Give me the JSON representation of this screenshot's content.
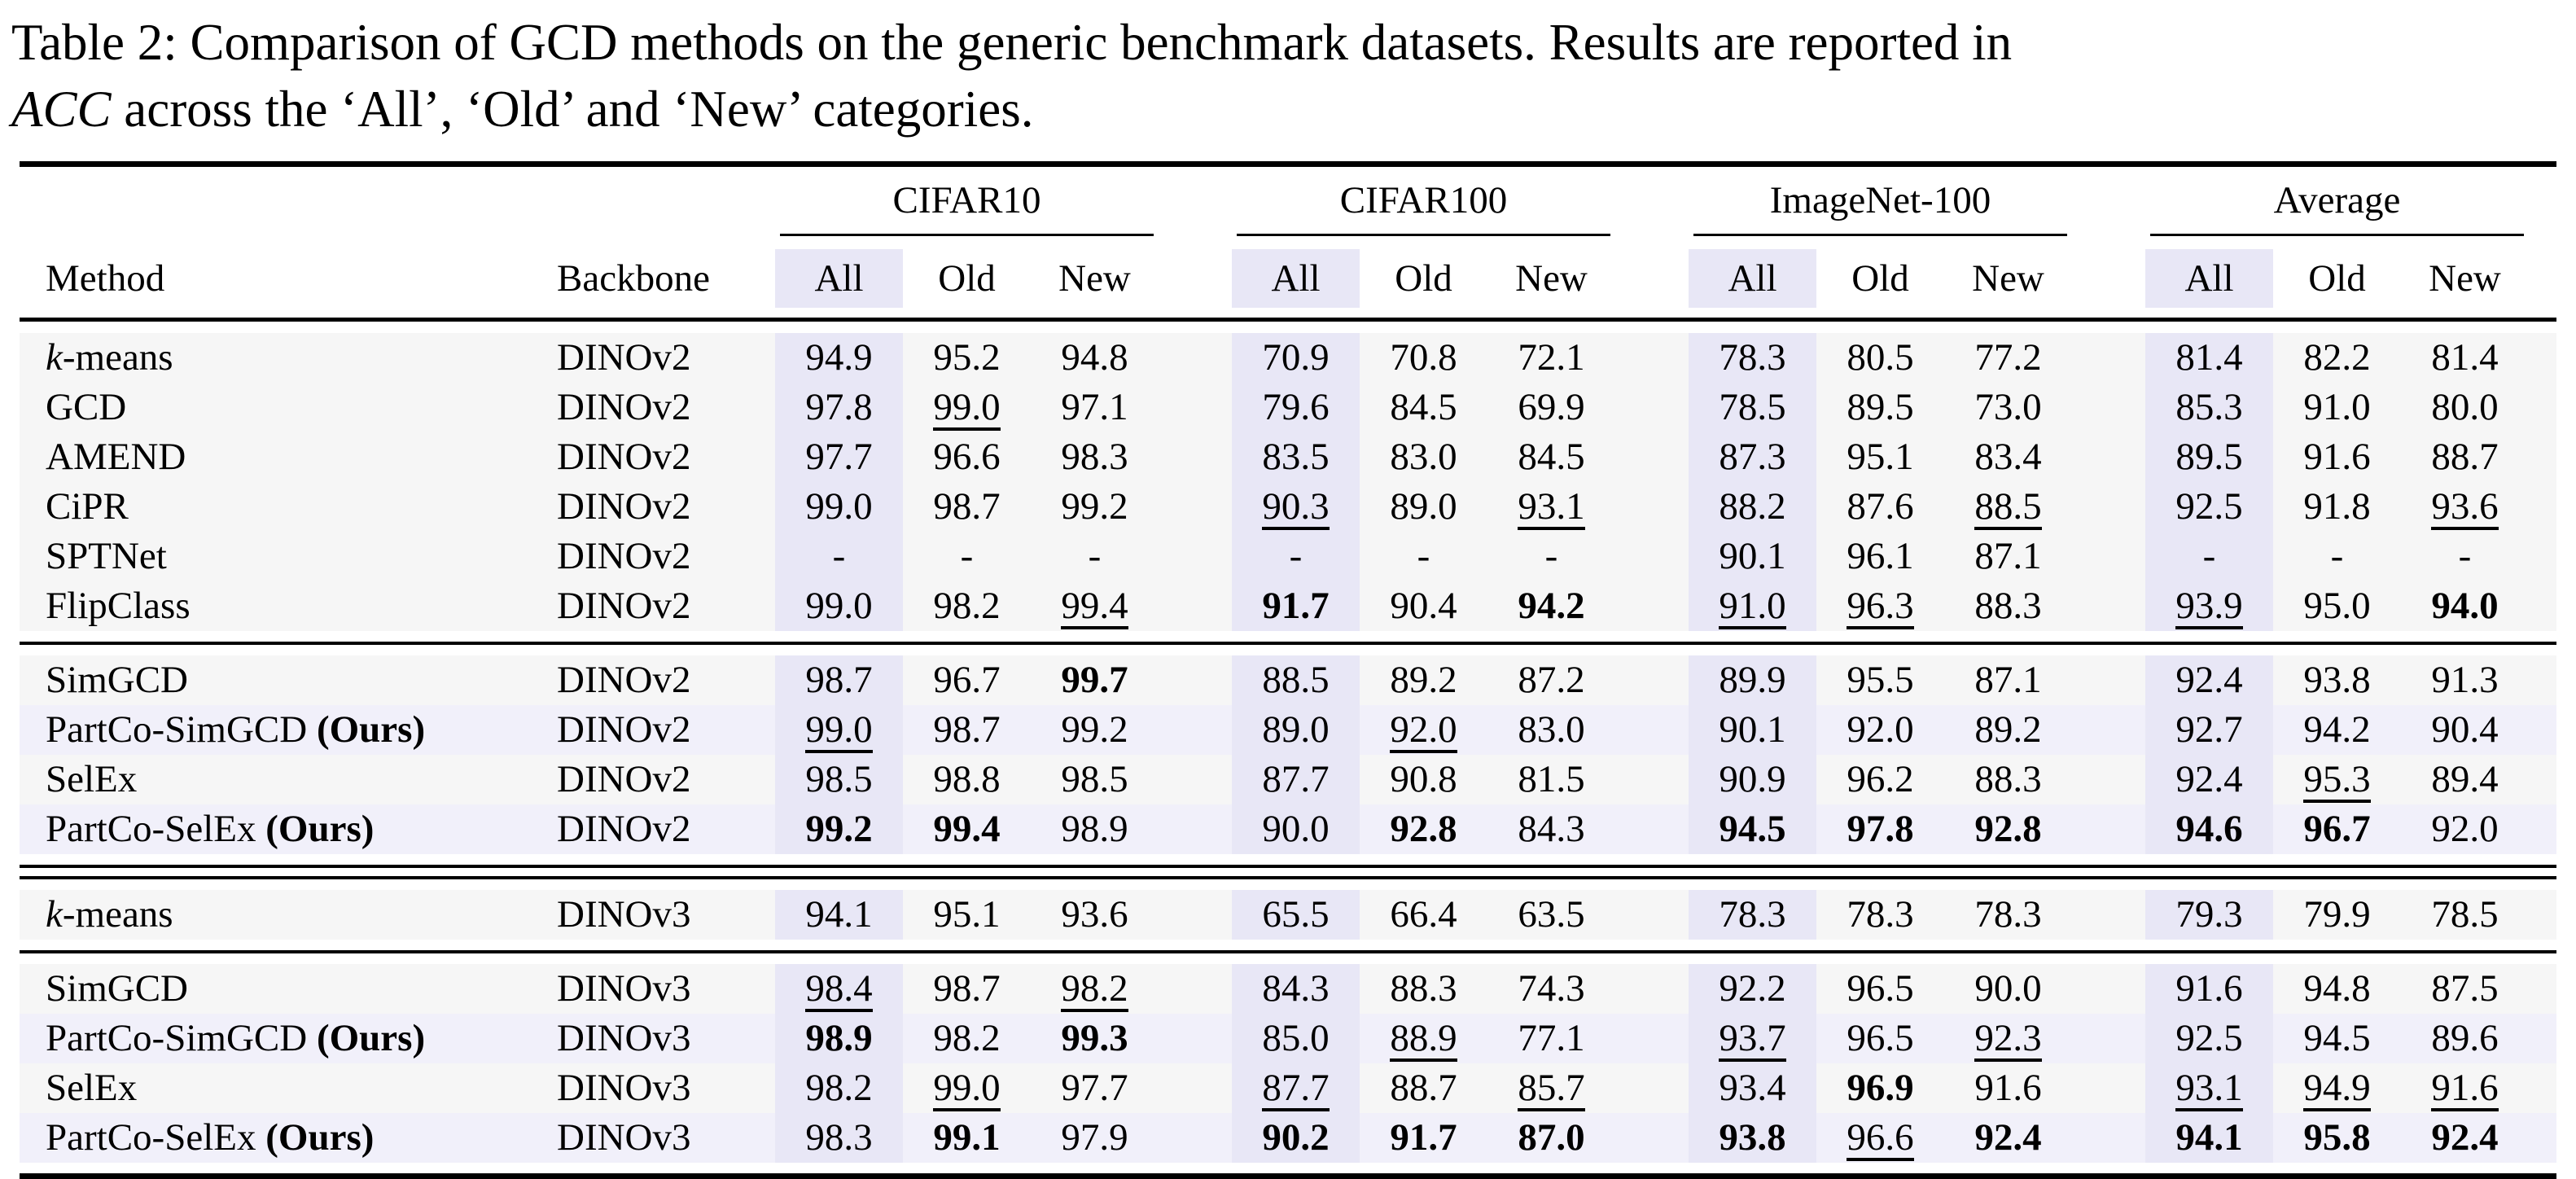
{
  "caption": {
    "line1": "Table 2: Comparison of GCD methods on the generic benchmark datasets. Results are reported in",
    "acc_italic": "ACC",
    "line2_rest": " across the ‘All’, ‘Old’ and ‘New’ categories."
  },
  "table": {
    "header": {
      "method": "Method",
      "backbone": "Backbone",
      "groups": [
        "CIFAR10",
        "CIFAR100",
        "ImageNet-100",
        "Average"
      ],
      "subcolumns": [
        "All",
        "Old",
        "New"
      ]
    },
    "colors": {
      "all_column_highlight": "#e8e7f6",
      "row_default": "#f6f6f6",
      "row_ours": "#f1f0fa"
    },
    "style_legend": {
      "n": "normal",
      "u": "underline (second best)",
      "b": "bold (best)"
    },
    "sections": [
      {
        "rows": [
          {
            "method": {
              "italic": "k",
              "text": "-means",
              "bold": ""
            },
            "backbone": "DINOv2",
            "ours": false,
            "values": [
              [
                "94.9",
                "n"
              ],
              [
                "95.2",
                "n"
              ],
              [
                "94.8",
                "n"
              ],
              [
                "70.9",
                "n"
              ],
              [
                "70.8",
                "n"
              ],
              [
                "72.1",
                "n"
              ],
              [
                "78.3",
                "n"
              ],
              [
                "80.5",
                "n"
              ],
              [
                "77.2",
                "n"
              ],
              [
                "81.4",
                "n"
              ],
              [
                "82.2",
                "n"
              ],
              [
                "81.4",
                "n"
              ]
            ]
          },
          {
            "method": {
              "italic": "",
              "text": "GCD",
              "bold": ""
            },
            "backbone": "DINOv2",
            "ours": false,
            "values": [
              [
                "97.8",
                "n"
              ],
              [
                "99.0",
                "u"
              ],
              [
                "97.1",
                "n"
              ],
              [
                "79.6",
                "n"
              ],
              [
                "84.5",
                "n"
              ],
              [
                "69.9",
                "n"
              ],
              [
                "78.5",
                "n"
              ],
              [
                "89.5",
                "n"
              ],
              [
                "73.0",
                "n"
              ],
              [
                "85.3",
                "n"
              ],
              [
                "91.0",
                "n"
              ],
              [
                "80.0",
                "n"
              ]
            ]
          },
          {
            "method": {
              "italic": "",
              "text": "AMEND",
              "bold": ""
            },
            "backbone": "DINOv2",
            "ours": false,
            "values": [
              [
                "97.7",
                "n"
              ],
              [
                "96.6",
                "n"
              ],
              [
                "98.3",
                "n"
              ],
              [
                "83.5",
                "n"
              ],
              [
                "83.0",
                "n"
              ],
              [
                "84.5",
                "n"
              ],
              [
                "87.3",
                "n"
              ],
              [
                "95.1",
                "n"
              ],
              [
                "83.4",
                "n"
              ],
              [
                "89.5",
                "n"
              ],
              [
                "91.6",
                "n"
              ],
              [
                "88.7",
                "n"
              ]
            ]
          },
          {
            "method": {
              "italic": "",
              "text": "CiPR",
              "bold": ""
            },
            "backbone": "DINOv2",
            "ours": false,
            "values": [
              [
                "99.0",
                "n"
              ],
              [
                "98.7",
                "n"
              ],
              [
                "99.2",
                "n"
              ],
              [
                "90.3",
                "u"
              ],
              [
                "89.0",
                "n"
              ],
              [
                "93.1",
                "u"
              ],
              [
                "88.2",
                "n"
              ],
              [
                "87.6",
                "n"
              ],
              [
                "88.5",
                "u"
              ],
              [
                "92.5",
                "n"
              ],
              [
                "91.8",
                "n"
              ],
              [
                "93.6",
                "u"
              ]
            ]
          },
          {
            "method": {
              "italic": "",
              "text": "SPTNet",
              "bold": ""
            },
            "backbone": "DINOv2",
            "ours": false,
            "values": [
              [
                "-",
                "n"
              ],
              [
                "-",
                "n"
              ],
              [
                "-",
                "n"
              ],
              [
                "-",
                "n"
              ],
              [
                "-",
                "n"
              ],
              [
                "-",
                "n"
              ],
              [
                "90.1",
                "n"
              ],
              [
                "96.1",
                "n"
              ],
              [
                "87.1",
                "n"
              ],
              [
                "-",
                "n"
              ],
              [
                "-",
                "n"
              ],
              [
                "-",
                "n"
              ]
            ]
          },
          {
            "method": {
              "italic": "",
              "text": "FlipClass",
              "bold": ""
            },
            "backbone": "DINOv2",
            "ours": false,
            "values": [
              [
                "99.0",
                "n"
              ],
              [
                "98.2",
                "n"
              ],
              [
                "99.4",
                "u"
              ],
              [
                "91.7",
                "b"
              ],
              [
                "90.4",
                "n"
              ],
              [
                "94.2",
                "b"
              ],
              [
                "91.0",
                "u"
              ],
              [
                "96.3",
                "u"
              ],
              [
                "88.3",
                "n"
              ],
              [
                "93.9",
                "u"
              ],
              [
                "95.0",
                "n"
              ],
              [
                "94.0",
                "b"
              ]
            ]
          }
        ]
      },
      {
        "rows": [
          {
            "method": {
              "italic": "",
              "text": "SimGCD",
              "bold": ""
            },
            "backbone": "DINOv2",
            "ours": false,
            "values": [
              [
                "98.7",
                "n"
              ],
              [
                "96.7",
                "n"
              ],
              [
                "99.7",
                "b"
              ],
              [
                "88.5",
                "n"
              ],
              [
                "89.2",
                "n"
              ],
              [
                "87.2",
                "n"
              ],
              [
                "89.9",
                "n"
              ],
              [
                "95.5",
                "n"
              ],
              [
                "87.1",
                "n"
              ],
              [
                "92.4",
                "n"
              ],
              [
                "93.8",
                "n"
              ],
              [
                "91.3",
                "n"
              ]
            ]
          },
          {
            "method": {
              "italic": "",
              "text": "PartCo-SimGCD ",
              "bold": "(Ours)"
            },
            "backbone": "DINOv2",
            "ours": true,
            "values": [
              [
                "99.0",
                "u"
              ],
              [
                "98.7",
                "n"
              ],
              [
                "99.2",
                "n"
              ],
              [
                "89.0",
                "n"
              ],
              [
                "92.0",
                "u"
              ],
              [
                "83.0",
                "n"
              ],
              [
                "90.1",
                "n"
              ],
              [
                "92.0",
                "n"
              ],
              [
                "89.2",
                "n"
              ],
              [
                "92.7",
                "n"
              ],
              [
                "94.2",
                "n"
              ],
              [
                "90.4",
                "n"
              ]
            ]
          },
          {
            "method": {
              "italic": "",
              "text": "SelEx",
              "bold": ""
            },
            "backbone": "DINOv2",
            "ours": false,
            "values": [
              [
                "98.5",
                "n"
              ],
              [
                "98.8",
                "n"
              ],
              [
                "98.5",
                "n"
              ],
              [
                "87.7",
                "n"
              ],
              [
                "90.8",
                "n"
              ],
              [
                "81.5",
                "n"
              ],
              [
                "90.9",
                "n"
              ],
              [
                "96.2",
                "n"
              ],
              [
                "88.3",
                "n"
              ],
              [
                "92.4",
                "n"
              ],
              [
                "95.3",
                "u"
              ],
              [
                "89.4",
                "n"
              ]
            ]
          },
          {
            "method": {
              "italic": "",
              "text": "PartCo-SelEx ",
              "bold": "(Ours)"
            },
            "backbone": "DINOv2",
            "ours": true,
            "values": [
              [
                "99.2",
                "b"
              ],
              [
                "99.4",
                "b"
              ],
              [
                "98.9",
                "n"
              ],
              [
                "90.0",
                "n"
              ],
              [
                "92.8",
                "b"
              ],
              [
                "84.3",
                "n"
              ],
              [
                "94.5",
                "b"
              ],
              [
                "97.8",
                "b"
              ],
              [
                "92.8",
                "b"
              ],
              [
                "94.6",
                "b"
              ],
              [
                "96.7",
                "b"
              ],
              [
                "92.0",
                "n"
              ]
            ]
          }
        ]
      },
      {
        "rows": [
          {
            "method": {
              "italic": "k",
              "text": "-means",
              "bold": ""
            },
            "backbone": "DINOv3",
            "ours": false,
            "values": [
              [
                "94.1",
                "n"
              ],
              [
                "95.1",
                "n"
              ],
              [
                "93.6",
                "n"
              ],
              [
                "65.5",
                "n"
              ],
              [
                "66.4",
                "n"
              ],
              [
                "63.5",
                "n"
              ],
              [
                "78.3",
                "n"
              ],
              [
                "78.3",
                "n"
              ],
              [
                "78.3",
                "n"
              ],
              [
                "79.3",
                "n"
              ],
              [
                "79.9",
                "n"
              ],
              [
                "78.5",
                "n"
              ]
            ]
          }
        ]
      },
      {
        "rows": [
          {
            "method": {
              "italic": "",
              "text": "SimGCD",
              "bold": ""
            },
            "backbone": "DINOv3",
            "ours": false,
            "values": [
              [
                "98.4",
                "u"
              ],
              [
                "98.7",
                "n"
              ],
              [
                "98.2",
                "u"
              ],
              [
                "84.3",
                "n"
              ],
              [
                "88.3",
                "n"
              ],
              [
                "74.3",
                "n"
              ],
              [
                "92.2",
                "n"
              ],
              [
                "96.5",
                "n"
              ],
              [
                "90.0",
                "n"
              ],
              [
                "91.6",
                "n"
              ],
              [
                "94.8",
                "n"
              ],
              [
                "87.5",
                "n"
              ]
            ]
          },
          {
            "method": {
              "italic": "",
              "text": "PartCo-SimGCD ",
              "bold": "(Ours)"
            },
            "backbone": "DINOv3",
            "ours": true,
            "values": [
              [
                "98.9",
                "b"
              ],
              [
                "98.2",
                "n"
              ],
              [
                "99.3",
                "b"
              ],
              [
                "85.0",
                "n"
              ],
              [
                "88.9",
                "u"
              ],
              [
                "77.1",
                "n"
              ],
              [
                "93.7",
                "u"
              ],
              [
                "96.5",
                "n"
              ],
              [
                "92.3",
                "u"
              ],
              [
                "92.5",
                "n"
              ],
              [
                "94.5",
                "n"
              ],
              [
                "89.6",
                "n"
              ]
            ]
          },
          {
            "method": {
              "italic": "",
              "text": "SelEx",
              "bold": ""
            },
            "backbone": "DINOv3",
            "ours": false,
            "values": [
              [
                "98.2",
                "n"
              ],
              [
                "99.0",
                "u"
              ],
              [
                "97.7",
                "n"
              ],
              [
                "87.7",
                "u"
              ],
              [
                "88.7",
                "n"
              ],
              [
                "85.7",
                "u"
              ],
              [
                "93.4",
                "n"
              ],
              [
                "96.9",
                "b"
              ],
              [
                "91.6",
                "n"
              ],
              [
                "93.1",
                "u"
              ],
              [
                "94.9",
                "u"
              ],
              [
                "91.6",
                "u"
              ]
            ]
          },
          {
            "method": {
              "italic": "",
              "text": "PartCo-SelEx ",
              "bold": "(Ours)"
            },
            "backbone": "DINOv3",
            "ours": true,
            "values": [
              [
                "98.3",
                "n"
              ],
              [
                "99.1",
                "b"
              ],
              [
                "97.9",
                "n"
              ],
              [
                "90.2",
                "b"
              ],
              [
                "91.7",
                "b"
              ],
              [
                "87.0",
                "b"
              ],
              [
                "93.8",
                "b"
              ],
              [
                "96.6",
                "u"
              ],
              [
                "92.4",
                "b"
              ],
              [
                "94.1",
                "b"
              ],
              [
                "95.8",
                "b"
              ],
              [
                "92.4",
                "b"
              ]
            ]
          }
        ]
      }
    ]
  }
}
